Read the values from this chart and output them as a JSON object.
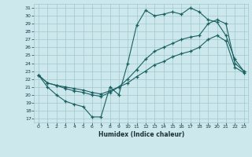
{
  "xlabel": "Humidex (Indice chaleur)",
  "bg_color": "#cce8ec",
  "grid_color": "#a0c8cc",
  "line_color": "#1a6060",
  "xlim": [
    -0.5,
    23.5
  ],
  "ylim": [
    16.5,
    31.5
  ],
  "xticks": [
    0,
    1,
    2,
    3,
    4,
    5,
    6,
    7,
    8,
    9,
    10,
    11,
    12,
    13,
    14,
    15,
    16,
    17,
    18,
    19,
    20,
    21,
    22,
    23
  ],
  "yticks": [
    17,
    18,
    19,
    20,
    21,
    22,
    23,
    24,
    25,
    26,
    27,
    28,
    29,
    30,
    31
  ],
  "series1_x": [
    0,
    1,
    2,
    3,
    4,
    5,
    6,
    7,
    8,
    9,
    10,
    11,
    12,
    13,
    14,
    15,
    16,
    17,
    18,
    19,
    20,
    21,
    22,
    23
  ],
  "series1_y": [
    22.5,
    21.0,
    20.0,
    19.2,
    18.8,
    18.5,
    17.2,
    17.2,
    21.0,
    20.0,
    24.0,
    28.8,
    30.7,
    30.0,
    30.2,
    30.5,
    30.2,
    31.0,
    30.5,
    29.5,
    29.2,
    27.5,
    24.5,
    23.0
  ],
  "series2_x": [
    0,
    1,
    2,
    3,
    4,
    5,
    6,
    7,
    8,
    9,
    10,
    11,
    12,
    13,
    14,
    15,
    16,
    17,
    18,
    19,
    20,
    21,
    22,
    23
  ],
  "series2_y": [
    22.5,
    21.5,
    21.2,
    20.8,
    20.5,
    20.3,
    20.0,
    19.8,
    20.3,
    21.0,
    22.0,
    23.2,
    24.5,
    25.5,
    26.0,
    26.5,
    27.0,
    27.3,
    27.5,
    29.0,
    29.5,
    29.0,
    24.0,
    23.0
  ],
  "series3_x": [
    0,
    1,
    2,
    3,
    4,
    5,
    6,
    7,
    8,
    9,
    10,
    11,
    12,
    13,
    14,
    15,
    16,
    17,
    18,
    19,
    20,
    21,
    22,
    23
  ],
  "series3_y": [
    22.5,
    21.5,
    21.2,
    21.0,
    20.8,
    20.6,
    20.3,
    20.1,
    20.5,
    21.0,
    21.5,
    22.3,
    23.0,
    23.8,
    24.2,
    24.8,
    25.2,
    25.5,
    26.0,
    27.0,
    27.5,
    26.8,
    23.5,
    22.8
  ]
}
